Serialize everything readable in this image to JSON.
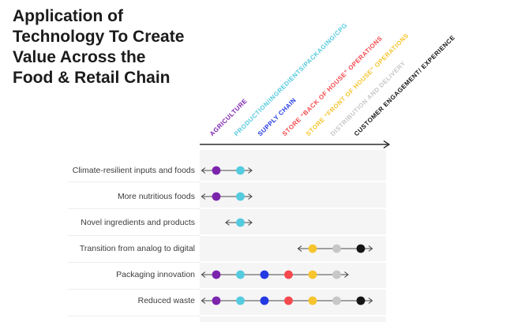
{
  "title": "Application of\nTechnology To Create\nValue Across the\nFood & Retail Chain",
  "chart_data": {
    "type": "dot-range",
    "title": "Application of Technology To Create Value Across the Food & Retail Chain",
    "column_axis": {
      "direction": "left-to-right arrow",
      "header_rotation_deg": -45
    },
    "columns": [
      {
        "label": "AGRICULTURE",
        "color": "#7B24AC"
      },
      {
        "label": "PRODUCTION/INGREDIENTS/PACKAGING/CPG",
        "color": "#55CBDF"
      },
      {
        "label": "SUPPLY CHAIN",
        "color": "#2339E2"
      },
      {
        "label": "STORE “BACK OF HOUSE” OPERATIONS",
        "color": "#F5494D"
      },
      {
        "label": "STORE “FRONT OF HOUSE” OPERATIONS",
        "color": "#F6C52E"
      },
      {
        "label": "DISTRIBUTION AND DELIVERY",
        "color": "#C7C7C7"
      },
      {
        "label": "CUSTOMER ENGAGEMENT/ EXPERIENCE",
        "color": "#151515"
      }
    ],
    "rows": [
      {
        "label": "Climate-resilient inputs and foods",
        "dot_columns": [
          0,
          1
        ]
      },
      {
        "label": "More nutritious foods",
        "dot_columns": [
          0,
          1
        ]
      },
      {
        "label": "Novel ingredients and products",
        "dot_columns": [
          1
        ]
      },
      {
        "label": "Transition from analog to digital",
        "dot_columns": [
          4,
          5,
          6
        ]
      },
      {
        "label": "Packaging innovation",
        "dot_columns": [
          0,
          1,
          2,
          3,
          4,
          5
        ]
      },
      {
        "label": "Reduced waste",
        "dot_columns": [
          0,
          1,
          2,
          3,
          4,
          5,
          6
        ]
      }
    ],
    "style_colors": {
      "row_band": "#f5f5f6",
      "range_line": "#4a4a4a",
      "row_label_text": "#3d3d3d",
      "axis_arrow": "#2e2e2e"
    },
    "legend": "none",
    "grid": "horizontal row bands"
  }
}
